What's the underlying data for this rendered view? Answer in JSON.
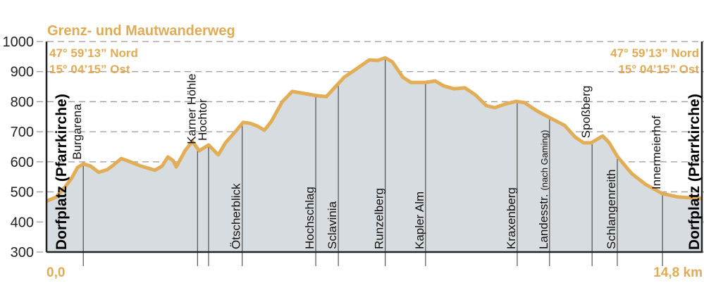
{
  "chart_data": {
    "type": "area",
    "title": "Grenz- und Mautwanderweg",
    "xlabel": "",
    "ylabel": "",
    "xlim": [
      0,
      14.8
    ],
    "ylim": [
      300,
      1000
    ],
    "yticks": [
      300,
      400,
      500,
      600,
      700,
      800,
      900,
      1000
    ],
    "x_start_label": "0,0",
    "x_end_label": "14,8 km",
    "grid": true,
    "coords_start": [
      "47° 59’13” Nord",
      "15° 04’15” Ost"
    ],
    "coords_end": [
      "47° 59’13” Nord",
      "15° 04’15” Ost"
    ],
    "start_label": "Dorfplatz (Pfarrkirche)",
    "end_label": "Dorfplatz (Pfarrkirche)",
    "colors": {
      "line": "#e2ad57",
      "fill": "#d6dcdf",
      "text_accent": "#e0ab56"
    },
    "profile": [
      [
        0.0,
        469
      ],
      [
        0.22,
        483
      ],
      [
        0.41,
        515
      ],
      [
        0.57,
        546
      ],
      [
        0.7,
        581
      ],
      [
        0.83,
        593
      ],
      [
        0.99,
        586
      ],
      [
        1.18,
        565
      ],
      [
        1.37,
        574
      ],
      [
        1.5,
        588
      ],
      [
        1.69,
        611
      ],
      [
        1.89,
        600
      ],
      [
        2.13,
        586
      ],
      [
        2.45,
        572
      ],
      [
        2.61,
        586
      ],
      [
        2.74,
        616
      ],
      [
        2.86,
        604
      ],
      [
        2.93,
        583
      ],
      [
        3.12,
        635
      ],
      [
        3.29,
        668
      ],
      [
        3.45,
        637
      ],
      [
        3.66,
        656
      ],
      [
        3.88,
        623
      ],
      [
        4.04,
        663
      ],
      [
        4.28,
        703
      ],
      [
        4.44,
        731
      ],
      [
        4.6,
        728
      ],
      [
        4.76,
        719
      ],
      [
        4.92,
        705
      ],
      [
        5.08,
        735
      ],
      [
        5.32,
        799
      ],
      [
        5.55,
        834
      ],
      [
        6.1,
        820
      ],
      [
        6.32,
        817
      ],
      [
        6.72,
        881
      ],
      [
        6.95,
        904
      ],
      [
        7.29,
        939
      ],
      [
        7.48,
        937
      ],
      [
        7.65,
        946
      ],
      [
        7.81,
        932
      ],
      [
        8.05,
        881
      ],
      [
        8.23,
        864
      ],
      [
        8.56,
        864
      ],
      [
        8.78,
        869
      ],
      [
        8.96,
        853
      ],
      [
        9.2,
        843
      ],
      [
        9.45,
        846
      ],
      [
        9.69,
        822
      ],
      [
        9.93,
        787
      ],
      [
        10.12,
        780
      ],
      [
        10.36,
        792
      ],
      [
        10.6,
        801
      ],
      [
        10.79,
        797
      ],
      [
        11.09,
        768
      ],
      [
        11.36,
        747
      ],
      [
        11.7,
        721
      ],
      [
        11.94,
        682
      ],
      [
        12.13,
        663
      ],
      [
        12.3,
        663
      ],
      [
        12.56,
        686
      ],
      [
        12.7,
        665
      ],
      [
        12.89,
        618
      ],
      [
        13.22,
        560
      ],
      [
        13.53,
        525
      ],
      [
        13.91,
        494
      ],
      [
        14.26,
        483
      ],
      [
        14.8,
        478
      ]
    ],
    "waypoints": [
      {
        "name": "Burgarena",
        "km": 0.83,
        "placement": "above"
      },
      {
        "name": "Karner Höhle",
        "km": 3.41,
        "placement": "above"
      },
      {
        "name": "Hochtor",
        "km": 3.66,
        "placement": "above"
      },
      {
        "name": "Ötscherblick",
        "km": 4.42,
        "placement": "below"
      },
      {
        "name": "Hochschlag",
        "km": 6.08,
        "placement": "below"
      },
      {
        "name": "Sclavinia",
        "km": 6.59,
        "placement": "below"
      },
      {
        "name": "Runzelberg",
        "km": 7.65,
        "placement": "below"
      },
      {
        "name": "Kapler Alm",
        "km": 8.56,
        "placement": "below"
      },
      {
        "name": "Kraxenberg",
        "km": 10.63,
        "placement": "below"
      },
      {
        "name": "Landesstr.",
        "note": "(nach Gaming)",
        "km": 11.36,
        "placement": "below"
      },
      {
        "name": "Spoßberg",
        "km": 12.32,
        "placement": "above"
      },
      {
        "name": "Schlangenreith",
        "km": 12.89,
        "placement": "below"
      },
      {
        "name": "Innermeierhof",
        "km": 13.91,
        "placement": "above"
      }
    ]
  }
}
